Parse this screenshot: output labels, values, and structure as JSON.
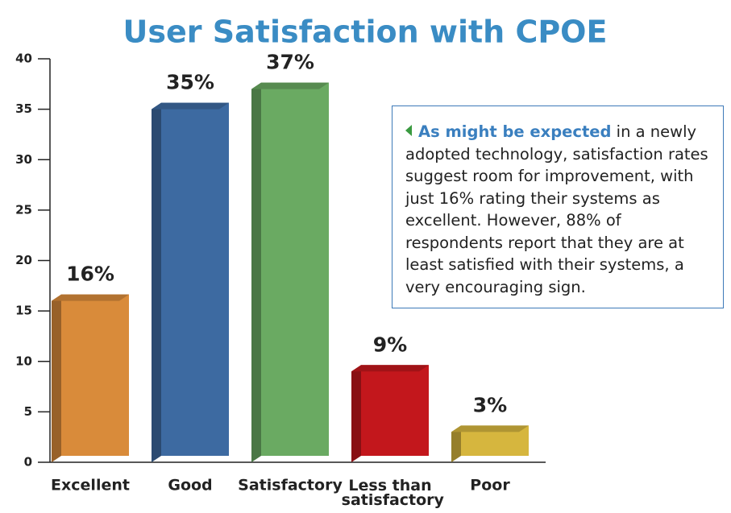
{
  "chart_data": {
    "type": "bar",
    "title": "User Satisfaction with CPOE",
    "categories": [
      "Excellent",
      "Good",
      "Satisfactory",
      "Less than satisfactory",
      "Poor"
    ],
    "values": [
      16,
      35,
      37,
      9,
      3
    ],
    "value_labels": [
      "16%",
      "35%",
      "37%",
      "9%",
      "3%"
    ],
    "colors": [
      "#d98b3a",
      "#3d6aa1",
      "#6aaa62",
      "#c3171c",
      "#d6b63e"
    ],
    "ylim": [
      0,
      40
    ],
    "yticks": [
      0,
      5,
      10,
      15,
      20,
      25,
      30,
      35,
      40
    ],
    "grid": false,
    "annotation": {
      "lead": "As might be expected",
      "text": "in a newly adopted technology, satisfaction rates suggest room for improvement, with just 16% rating their systems as excellent. However, 88% of respondents report that they are at least satisfied with their systems, a very encouraging sign."
    }
  }
}
